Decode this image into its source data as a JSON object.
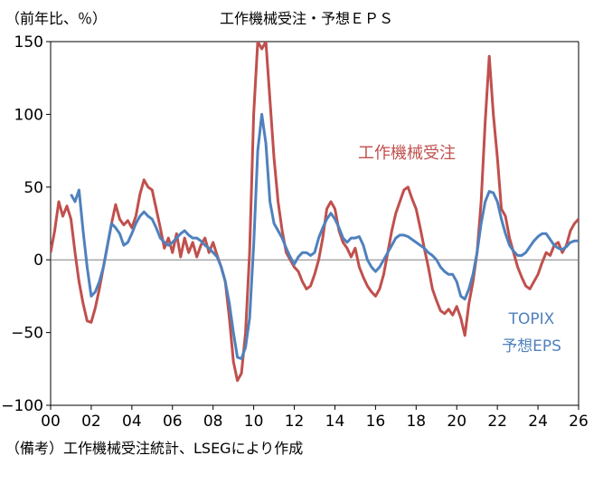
{
  "chart_data": {
    "type": "line",
    "title": "工作機械受注・予想ＥＰＳ",
    "ylabel": "（前年比、％）",
    "ylim": [
      -100,
      150
    ],
    "yticks": [
      150,
      100,
      50,
      0,
      -50,
      -100
    ],
    "xlim": [
      2000,
      2026
    ],
    "xticks": [
      "00",
      "02",
      "04",
      "06",
      "08",
      "10",
      "12",
      "14",
      "16",
      "18",
      "20",
      "22",
      "24",
      "26"
    ],
    "grid": false,
    "series": [
      {
        "name": "工作機械受注",
        "color": "#C0504D",
        "points": [
          [
            2000.0,
            5
          ],
          [
            2000.2,
            20
          ],
          [
            2000.4,
            40
          ],
          [
            2000.6,
            30
          ],
          [
            2000.8,
            37
          ],
          [
            2001.0,
            28
          ],
          [
            2001.2,
            5
          ],
          [
            2001.4,
            -15
          ],
          [
            2001.6,
            -30
          ],
          [
            2001.8,
            -42
          ],
          [
            2002.0,
            -43
          ],
          [
            2002.2,
            -33
          ],
          [
            2002.4,
            -20
          ],
          [
            2002.6,
            -5
          ],
          [
            2002.8,
            10
          ],
          [
            2003.0,
            25
          ],
          [
            2003.2,
            38
          ],
          [
            2003.4,
            28
          ],
          [
            2003.6,
            24
          ],
          [
            2003.8,
            27
          ],
          [
            2004.0,
            22
          ],
          [
            2004.2,
            30
          ],
          [
            2004.4,
            45
          ],
          [
            2004.6,
            55
          ],
          [
            2004.8,
            50
          ],
          [
            2005.0,
            48
          ],
          [
            2005.2,
            35
          ],
          [
            2005.4,
            22
          ],
          [
            2005.6,
            8
          ],
          [
            2005.8,
            15
          ],
          [
            2006.0,
            5
          ],
          [
            2006.2,
            18
          ],
          [
            2006.4,
            2
          ],
          [
            2006.6,
            15
          ],
          [
            2006.8,
            5
          ],
          [
            2007.0,
            12
          ],
          [
            2007.2,
            2
          ],
          [
            2007.4,
            10
          ],
          [
            2007.6,
            15
          ],
          [
            2007.8,
            5
          ],
          [
            2008.0,
            12
          ],
          [
            2008.2,
            3
          ],
          [
            2008.4,
            -5
          ],
          [
            2008.6,
            -15
          ],
          [
            2008.8,
            -40
          ],
          [
            2009.0,
            -70
          ],
          [
            2009.2,
            -83
          ],
          [
            2009.4,
            -78
          ],
          [
            2009.6,
            -50
          ],
          [
            2009.8,
            5
          ],
          [
            2010.0,
            100
          ],
          [
            2010.2,
            150
          ],
          [
            2010.4,
            145
          ],
          [
            2010.6,
            150
          ],
          [
            2010.8,
            110
          ],
          [
            2011.0,
            70
          ],
          [
            2011.2,
            40
          ],
          [
            2011.4,
            20
          ],
          [
            2011.6,
            5
          ],
          [
            2011.8,
            0
          ],
          [
            2012.0,
            -5
          ],
          [
            2012.2,
            -8
          ],
          [
            2012.4,
            -15
          ],
          [
            2012.6,
            -20
          ],
          [
            2012.8,
            -18
          ],
          [
            2013.0,
            -10
          ],
          [
            2013.2,
            0
          ],
          [
            2013.4,
            15
          ],
          [
            2013.6,
            35
          ],
          [
            2013.8,
            40
          ],
          [
            2014.0,
            35
          ],
          [
            2014.2,
            20
          ],
          [
            2014.4,
            12
          ],
          [
            2014.6,
            8
          ],
          [
            2014.8,
            2
          ],
          [
            2015.0,
            8
          ],
          [
            2015.2,
            -5
          ],
          [
            2015.4,
            -12
          ],
          [
            2015.6,
            -18
          ],
          [
            2015.8,
            -22
          ],
          [
            2016.0,
            -25
          ],
          [
            2016.2,
            -20
          ],
          [
            2016.4,
            -10
          ],
          [
            2016.6,
            5
          ],
          [
            2016.8,
            20
          ],
          [
            2017.0,
            32
          ],
          [
            2017.2,
            40
          ],
          [
            2017.4,
            48
          ],
          [
            2017.6,
            50
          ],
          [
            2017.8,
            42
          ],
          [
            2018.0,
            35
          ],
          [
            2018.2,
            22
          ],
          [
            2018.4,
            8
          ],
          [
            2018.6,
            -5
          ],
          [
            2018.8,
            -20
          ],
          [
            2019.0,
            -28
          ],
          [
            2019.2,
            -35
          ],
          [
            2019.4,
            -37
          ],
          [
            2019.6,
            -34
          ],
          [
            2019.8,
            -38
          ],
          [
            2020.0,
            -32
          ],
          [
            2020.2,
            -40
          ],
          [
            2020.4,
            -52
          ],
          [
            2020.6,
            -30
          ],
          [
            2020.8,
            -15
          ],
          [
            2021.0,
            5
          ],
          [
            2021.2,
            40
          ],
          [
            2021.4,
            95
          ],
          [
            2021.6,
            140
          ],
          [
            2021.8,
            100
          ],
          [
            2022.0,
            70
          ],
          [
            2022.2,
            35
          ],
          [
            2022.4,
            30
          ],
          [
            2022.6,
            15
          ],
          [
            2022.8,
            5
          ],
          [
            2023.0,
            -5
          ],
          [
            2023.2,
            -12
          ],
          [
            2023.4,
            -18
          ],
          [
            2023.6,
            -20
          ],
          [
            2023.8,
            -15
          ],
          [
            2024.0,
            -10
          ],
          [
            2024.2,
            -2
          ],
          [
            2024.4,
            5
          ],
          [
            2024.6,
            3
          ],
          [
            2024.8,
            10
          ],
          [
            2025.0,
            12
          ],
          [
            2025.2,
            5
          ],
          [
            2025.4,
            10
          ],
          [
            2025.6,
            20
          ],
          [
            2025.8,
            25
          ],
          [
            2026.0,
            28
          ]
        ]
      },
      {
        "name": "TOPIX 予想EPS",
        "color": "#4F81BD",
        "points": [
          [
            2001.0,
            45
          ],
          [
            2001.2,
            40
          ],
          [
            2001.4,
            48
          ],
          [
            2001.6,
            20
          ],
          [
            2001.8,
            -5
          ],
          [
            2002.0,
            -25
          ],
          [
            2002.2,
            -22
          ],
          [
            2002.4,
            -15
          ],
          [
            2002.6,
            -5
          ],
          [
            2002.8,
            10
          ],
          [
            2003.0,
            25
          ],
          [
            2003.2,
            22
          ],
          [
            2003.4,
            18
          ],
          [
            2003.6,
            10
          ],
          [
            2003.8,
            12
          ],
          [
            2004.0,
            18
          ],
          [
            2004.2,
            25
          ],
          [
            2004.4,
            30
          ],
          [
            2004.6,
            33
          ],
          [
            2004.8,
            30
          ],
          [
            2005.0,
            28
          ],
          [
            2005.2,
            22
          ],
          [
            2005.4,
            15
          ],
          [
            2005.6,
            12
          ],
          [
            2005.8,
            10
          ],
          [
            2006.0,
            12
          ],
          [
            2006.2,
            15
          ],
          [
            2006.4,
            18
          ],
          [
            2006.6,
            20
          ],
          [
            2006.8,
            17
          ],
          [
            2007.0,
            15
          ],
          [
            2007.2,
            15
          ],
          [
            2007.4,
            13
          ],
          [
            2007.6,
            10
          ],
          [
            2007.8,
            8
          ],
          [
            2008.0,
            5
          ],
          [
            2008.2,
            2
          ],
          [
            2008.4,
            -5
          ],
          [
            2008.6,
            -15
          ],
          [
            2008.8,
            -30
          ],
          [
            2009.0,
            -50
          ],
          [
            2009.2,
            -67
          ],
          [
            2009.4,
            -68
          ],
          [
            2009.6,
            -60
          ],
          [
            2009.8,
            -40
          ],
          [
            2010.0,
            10
          ],
          [
            2010.2,
            75
          ],
          [
            2010.4,
            100
          ],
          [
            2010.6,
            80
          ],
          [
            2010.8,
            40
          ],
          [
            2011.0,
            25
          ],
          [
            2011.2,
            20
          ],
          [
            2011.4,
            15
          ],
          [
            2011.6,
            8
          ],
          [
            2011.8,
            2
          ],
          [
            2012.0,
            -3
          ],
          [
            2012.2,
            2
          ],
          [
            2012.4,
            5
          ],
          [
            2012.6,
            5
          ],
          [
            2012.8,
            3
          ],
          [
            2013.0,
            5
          ],
          [
            2013.2,
            15
          ],
          [
            2013.4,
            22
          ],
          [
            2013.6,
            28
          ],
          [
            2013.8,
            32
          ],
          [
            2014.0,
            28
          ],
          [
            2014.2,
            22
          ],
          [
            2014.4,
            15
          ],
          [
            2014.6,
            12
          ],
          [
            2014.8,
            15
          ],
          [
            2015.0,
            15
          ],
          [
            2015.2,
            16
          ],
          [
            2015.4,
            10
          ],
          [
            2015.6,
            0
          ],
          [
            2015.8,
            -5
          ],
          [
            2016.0,
            -8
          ],
          [
            2016.2,
            -5
          ],
          [
            2016.4,
            0
          ],
          [
            2016.6,
            5
          ],
          [
            2016.8,
            10
          ],
          [
            2017.0,
            15
          ],
          [
            2017.2,
            17
          ],
          [
            2017.4,
            17
          ],
          [
            2017.6,
            16
          ],
          [
            2017.8,
            14
          ],
          [
            2018.0,
            12
          ],
          [
            2018.2,
            10
          ],
          [
            2018.4,
            8
          ],
          [
            2018.6,
            5
          ],
          [
            2018.8,
            3
          ],
          [
            2019.0,
            0
          ],
          [
            2019.2,
            -5
          ],
          [
            2019.4,
            -8
          ],
          [
            2019.6,
            -10
          ],
          [
            2019.8,
            -10
          ],
          [
            2020.0,
            -15
          ],
          [
            2020.2,
            -25
          ],
          [
            2020.4,
            -27
          ],
          [
            2020.6,
            -20
          ],
          [
            2020.8,
            -10
          ],
          [
            2021.0,
            5
          ],
          [
            2021.2,
            25
          ],
          [
            2021.4,
            40
          ],
          [
            2021.6,
            47
          ],
          [
            2021.8,
            46
          ],
          [
            2022.0,
            40
          ],
          [
            2022.2,
            28
          ],
          [
            2022.4,
            18
          ],
          [
            2022.6,
            10
          ],
          [
            2022.8,
            6
          ],
          [
            2023.0,
            3
          ],
          [
            2023.2,
            3
          ],
          [
            2023.4,
            5
          ],
          [
            2023.6,
            9
          ],
          [
            2023.8,
            13
          ],
          [
            2024.0,
            16
          ],
          [
            2024.2,
            18
          ],
          [
            2024.4,
            18
          ],
          [
            2024.6,
            14
          ],
          [
            2024.8,
            10
          ],
          [
            2025.0,
            8
          ],
          [
            2025.2,
            7
          ],
          [
            2025.4,
            9
          ],
          [
            2025.6,
            12
          ],
          [
            2025.8,
            13
          ],
          [
            2026.0,
            13
          ]
        ]
      }
    ],
    "annotations": {
      "orders_label": "工作機械受注",
      "eps_label_line1": "TOPIX",
      "eps_label_line2": "予想EPS"
    }
  },
  "footnote": "（備考）工作機械受注統計、LSEGにより作成"
}
